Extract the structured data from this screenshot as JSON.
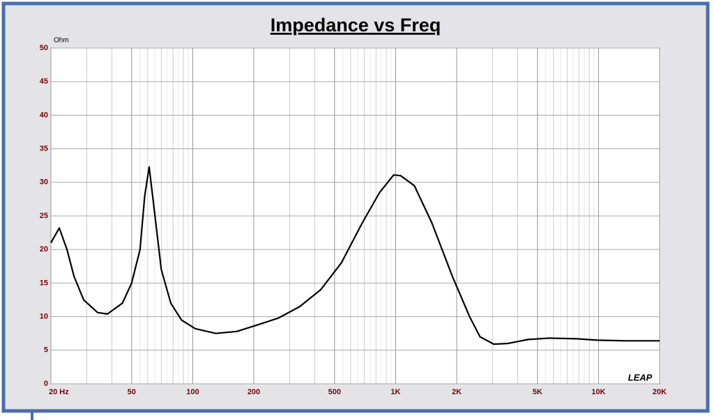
{
  "chart_data": {
    "type": "line",
    "title": "Impedance vs Freq",
    "y_label": "Ohm",
    "logo": "LEAP",
    "x": [
      20,
      22,
      24,
      26,
      29,
      34,
      38,
      45,
      50,
      55,
      58,
      61,
      64,
      70,
      78,
      88,
      103,
      130,
      165,
      210,
      265,
      337,
      427,
      540,
      686,
      834,
      978,
      1057,
      1237,
      1507,
      1904,
      2315,
      2605,
      3047,
      3563,
      4505,
      5700,
      7800,
      9860,
      13500,
      20000
    ],
    "values": [
      21,
      23.2,
      20,
      16,
      12.5,
      10.6,
      10.4,
      12,
      15,
      20,
      28,
      32.3,
      27,
      17,
      12,
      9.5,
      8.2,
      7.5,
      7.8,
      8.8,
      9.8,
      11.5,
      14,
      18,
      24,
      28.5,
      31.1,
      31,
      29.5,
      24,
      16,
      10,
      7,
      5.9,
      6,
      6.6,
      6.8,
      6.7,
      6.5,
      6.4,
      6.4
    ],
    "color": "#000000",
    "xscale": "log",
    "xlim": [
      20,
      20000
    ],
    "xticks": [
      {
        "value": 20,
        "label": "20 Hz"
      },
      50,
      100,
      200,
      500,
      {
        "value": 1000,
        "label": "1K"
      },
      {
        "value": 2000,
        "label": "2K"
      },
      {
        "value": 5000,
        "label": "5K"
      },
      {
        "value": 10000,
        "label": "10K"
      },
      {
        "value": 20000,
        "label": "20K"
      }
    ],
    "ylim": [
      0,
      50
    ],
    "yticks": [
      0,
      5,
      10,
      15,
      20,
      25,
      30,
      35,
      40,
      45,
      50
    ],
    "grid": true
  }
}
